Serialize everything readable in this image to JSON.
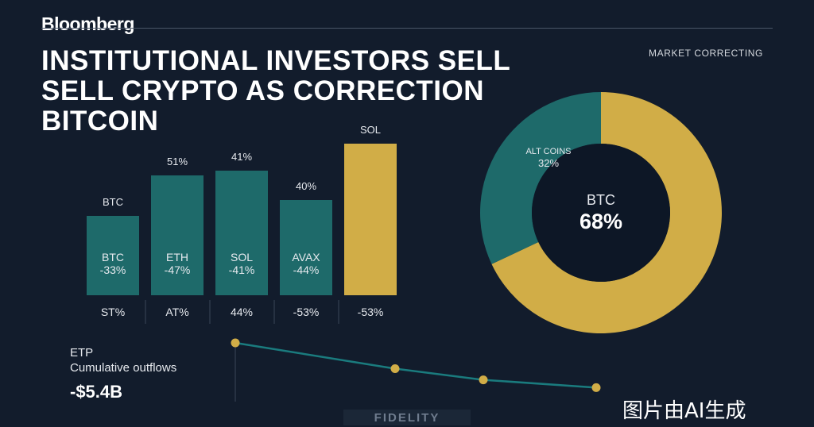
{
  "header": {
    "brand": "Bloomberg",
    "headline_lines": [
      "INSTITUTIONAL INVESTORS SELL",
      "SELL CRYPTO AS CORRECTION",
      "BITCOIN"
    ],
    "tag": "MARKET CORRECTING"
  },
  "colors": {
    "background": "#121c2c",
    "teal": "#1e6a6a",
    "gold": "#d1ad47",
    "donut_hole": "#0d1726",
    "line": "#1a7b7e"
  },
  "chart_data": [
    {
      "type": "bar",
      "categories": [
        "BTC",
        "ETH",
        "SOL",
        "AVAX",
        "SOL"
      ],
      "values": [
        100,
        151,
        157,
        120,
        191
      ],
      "colors": [
        "#1e6a6a",
        "#1e6a6a",
        "#1e6a6a",
        "#1e6a6a",
        "#d1ad47"
      ],
      "top_labels": [
        "BTC",
        "51%",
        "41%",
        "40%",
        "SOL"
      ],
      "inner_labels": [
        [
          "BTC",
          "-33%"
        ],
        [
          "ETH",
          "-47%"
        ],
        [
          "SOL",
          "-41%"
        ],
        [
          "AVAX",
          "-44%"
        ],
        [
          "",
          ""
        ]
      ],
      "bottom_labels": [
        "ST%",
        "AT%",
        "44%",
        "-53%",
        "-53%"
      ]
    },
    {
      "type": "pie",
      "style": "donut",
      "slices": [
        {
          "label": "BTC",
          "value": 68,
          "color": "#d1ad47"
        },
        {
          "label": "ALT COINS",
          "value": 32,
          "color": "#1e6a6a"
        }
      ],
      "center_label": "BTC",
      "center_value": "68%",
      "slice_label": "ALT COINS",
      "slice_value": "32%"
    },
    {
      "type": "line",
      "title": "ETP",
      "subtitle": "Cumulative outflows",
      "value_label": "-$5.4B",
      "values": [
        100,
        70,
        57,
        48
      ],
      "ylim": [
        40,
        100
      ]
    }
  ],
  "footer": {
    "source": "FIDELITY",
    "watermark": "图片由AI生成"
  }
}
